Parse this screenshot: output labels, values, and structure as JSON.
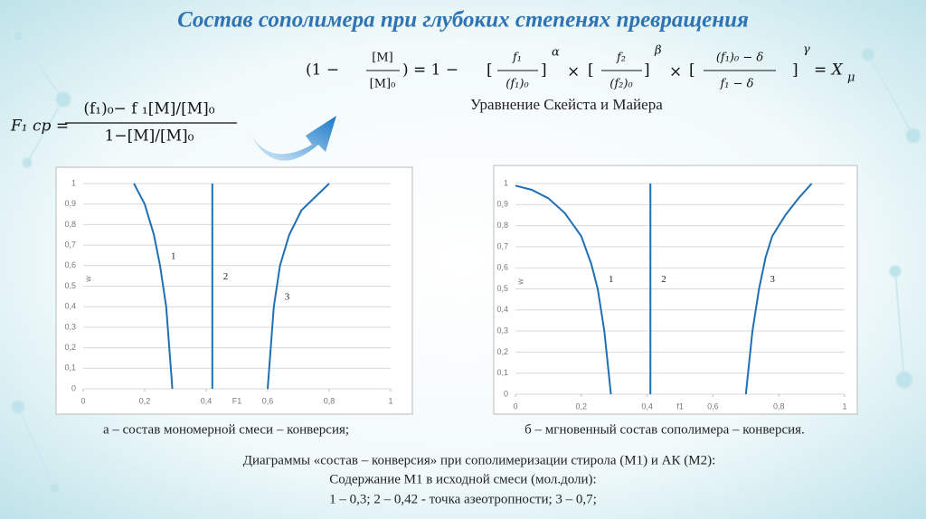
{
  "title": "Состав сополимера при глубоких степенях превращения",
  "formula": {
    "lhs": "F₁ ср =",
    "numerator": "(f₁)₀− f ₁[M]/[M]₀",
    "denominator": "1−[M]/[M]₀"
  },
  "equation": [
    "(1 −",
    "[M]",
    "[M]₀",
    ") = 1 −",
    "[",
    "f₁",
    "(f₁)₀",
    "]",
    "α",
    "×",
    "[",
    "f₂",
    "(f₂)₀",
    "]",
    "β",
    "×",
    "[",
    "(f₁)₀ − δ",
    "f₁ − δ",
    "]",
    "γ",
    "= X",
    "μ"
  ],
  "equation_caption": "Уравнение Скейста и Майера",
  "chart_data": [
    {
      "type": "line",
      "x_label": "F1",
      "y_label": "w",
      "color": "#1f6fb5",
      "grid": true,
      "xlim": [
        0,
        1
      ],
      "xticks": [
        0,
        {
          "value": 0.2,
          "label": "0,2"
        },
        {
          "value": 0.4,
          "label": "0,4"
        },
        {
          "value": 0.6,
          "label": "0,6"
        },
        {
          "value": 0.8,
          "label": "0,8"
        },
        1
      ],
      "ylim": [
        0,
        1
      ],
      "yticks": [
        0,
        {
          "value": 0.1,
          "label": "0,1"
        },
        {
          "value": 0.2,
          "label": "0,2"
        },
        {
          "value": 0.3,
          "label": "0,3"
        },
        {
          "value": 0.4,
          "label": "0,4"
        },
        {
          "value": 0.5,
          "label": "0,5"
        },
        {
          "value": 0.6,
          "label": "0,6"
        },
        {
          "value": 0.7,
          "label": "0,7"
        },
        {
          "value": 0.8,
          "label": "0,8"
        },
        {
          "value": 0.9,
          "label": "0,9"
        },
        1
      ],
      "series": [
        {
          "name": "1",
          "x": [
            0.165,
            0.2,
            0.23,
            0.25,
            0.27,
            0.28,
            0.29
          ],
          "values": [
            1,
            0.9,
            0.75,
            0.6,
            0.4,
            0.2,
            0
          ]
        },
        {
          "name": "2",
          "x": [
            0.42,
            0.42
          ],
          "values": [
            0,
            1
          ]
        },
        {
          "name": "3",
          "x": [
            0.6,
            0.61,
            0.62,
            0.64,
            0.67,
            0.71,
            0.8
          ],
          "values": [
            0,
            0.2,
            0.4,
            0.6,
            0.75,
            0.87,
            1
          ]
        }
      ]
    },
    {
      "type": "line",
      "x_label": "f1",
      "y_label": "w",
      "color": "#1f6fb5",
      "grid": true,
      "xlim": [
        0,
        1
      ],
      "xticks": [
        0,
        {
          "value": 0.2,
          "label": "0,2"
        },
        {
          "value": 0.4,
          "label": "0,4"
        },
        {
          "value": 0.6,
          "label": "0,6"
        },
        {
          "value": 0.8,
          "label": "0,8"
        },
        1
      ],
      "ylim": [
        0,
        1
      ],
      "yticks": [
        0,
        {
          "value": 0.1,
          "label": "0,1"
        },
        {
          "value": 0.2,
          "label": "0,2"
        },
        {
          "value": 0.3,
          "label": "0,3"
        },
        {
          "value": 0.4,
          "label": "0,4"
        },
        {
          "value": 0.5,
          "label": "0,5"
        },
        {
          "value": 0.6,
          "label": "0,6"
        },
        {
          "value": 0.7,
          "label": "0,7"
        },
        {
          "value": 0.8,
          "label": "0,8"
        },
        {
          "value": 0.9,
          "label": "0,9"
        },
        1
      ],
      "series": [
        {
          "name": "1",
          "x": [
            0,
            0.05,
            0.1,
            0.15,
            0.2,
            0.23,
            0.25,
            0.27,
            0.29
          ],
          "values": [
            0.99,
            0.97,
            0.93,
            0.86,
            0.75,
            0.62,
            0.5,
            0.3,
            0
          ]
        },
        {
          "name": "2",
          "x": [
            0.41,
            0.41
          ],
          "values": [
            0,
            1
          ]
        },
        {
          "name": "3",
          "x": [
            0.7,
            0.72,
            0.74,
            0.76,
            0.78,
            0.82,
            0.86,
            0.9
          ],
          "values": [
            0,
            0.3,
            0.5,
            0.65,
            0.75,
            0.85,
            0.93,
            1
          ]
        }
      ]
    }
  ],
  "captions": {
    "a": "а – состав мономерной смеси – конверсия;",
    "b": "б – мгновенный состав сополимера – конверсия.",
    "lines": [
      "Диаграммы «состав – конверсия» при сополимеризации стирола (М1) и  АК (М2):",
      "Содержание М1 в исходной смеси (мол.доли):",
      "1 – 0,3; 2 – 0,42 - точка азеотропности; 3 – 0,7;"
    ]
  }
}
